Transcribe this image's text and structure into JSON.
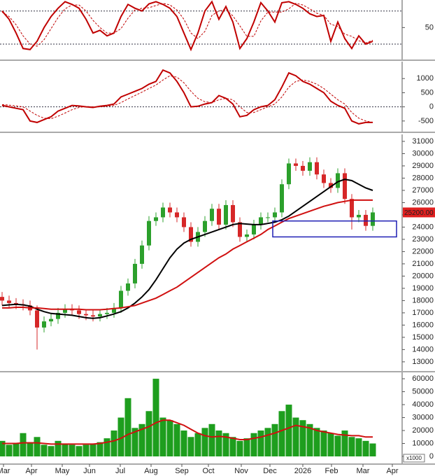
{
  "chart_data": [
    {
      "type": "line",
      "xlim": [
        -0.3,
        57.2
      ],
      "ylim": [
        -8,
        100
      ],
      "yticks": [
        50
      ],
      "levels": [
        20,
        80
      ],
      "series": [
        {
          "color": "#c00000",
          "dash": false,
          "values": [
            80,
            65,
            40,
            12,
            10,
            25,
            50,
            70,
            85,
            97,
            92,
            85,
            65,
            40,
            45,
            35,
            40,
            70,
            92,
            85,
            80,
            93,
            97,
            92,
            85,
            70,
            40,
            10,
            40,
            80,
            97,
            65,
            88,
            60,
            12,
            30,
            60,
            95,
            80,
            60,
            95,
            97,
            92,
            85,
            75,
            70,
            72,
            25,
            60,
            30,
            12,
            35,
            20,
            25
          ]
        },
        {
          "color": "#c00000",
          "dash": true,
          "values": [
            78,
            70,
            55,
            35,
            20,
            16,
            28,
            48,
            68,
            84,
            91,
            91,
            80,
            63,
            50,
            40,
            40,
            48,
            67,
            82,
            85,
            86,
            90,
            94,
            91,
            82,
            65,
            40,
            30,
            43,
            72,
            80,
            83,
            71,
            53,
            34,
            34,
            62,
            78,
            78,
            78,
            84,
            94,
            91,
            84,
            76,
            72,
            56,
            52,
            38,
            34,
            26,
            22,
            27
          ]
        }
      ]
    },
    {
      "type": "line",
      "xlim": [
        -0.3,
        57.2
      ],
      "ylim": [
        -875,
        1600
      ],
      "yticks": [
        -500,
        0,
        500,
        1000
      ],
      "levels": [
        0
      ],
      "series": [
        {
          "color": "#c00000",
          "dash": false,
          "values": [
            50,
            0,
            -50,
            -100,
            -500,
            -550,
            -450,
            -350,
            -150,
            -50,
            50,
            30,
            0,
            -20,
            20,
            50,
            100,
            350,
            450,
            550,
            650,
            800,
            900,
            1300,
            1200,
            900,
            500,
            0,
            20,
            100,
            150,
            400,
            300,
            100,
            -350,
            -300,
            -100,
            0,
            50,
            250,
            700,
            1200,
            1100,
            900,
            800,
            650,
            500,
            200,
            50,
            -50,
            -500,
            -600,
            -550,
            -550
          ]
        },
        {
          "color": "#c00000",
          "dash": true,
          "values": [
            80,
            60,
            30,
            0,
            -150,
            -300,
            -400,
            -420,
            -330,
            -220,
            -100,
            -20,
            10,
            0,
            0,
            20,
            50,
            150,
            280,
            400,
            520,
            650,
            770,
            950,
            1100,
            1050,
            850,
            550,
            300,
            180,
            150,
            250,
            300,
            250,
            0,
            -200,
            -200,
            -100,
            0,
            100,
            350,
            700,
            900,
            950,
            900,
            800,
            650,
            450,
            250,
            100,
            -200,
            -400,
            -500,
            -550
          ]
        }
      ]
    },
    {
      "type": "candlestick",
      "xlim": [
        -0.3,
        57.2
      ],
      "ylim": [
        12250,
        31570
      ],
      "yticks": [
        13000,
        14000,
        15000,
        16000,
        17000,
        18000,
        19000,
        20000,
        21000,
        22000,
        23000,
        24000,
        25000,
        26000,
        27000,
        28000,
        29000,
        30000,
        31000
      ],
      "up_color": "#2ca02c",
      "down_color": "#d62728",
      "open": [
        18300,
        18000,
        17800,
        17700,
        17600,
        17200,
        15800,
        16300,
        16500,
        17000,
        17300,
        17200,
        16900,
        16800,
        16700,
        16900,
        17000,
        17400,
        18800,
        19400,
        21000,
        22500,
        24500,
        24800,
        25600,
        25200,
        24800,
        24000,
        22800,
        23600,
        24500,
        25500,
        24200,
        25800,
        24400,
        23200,
        23400,
        24200,
        24800,
        24800,
        25200,
        27500,
        29200,
        29000,
        28600,
        29300,
        28300,
        27600,
        27200,
        28400,
        26300,
        24800,
        25000,
        24100
      ],
      "high": [
        18700,
        18400,
        18200,
        18100,
        18000,
        17600,
        16700,
        16900,
        17400,
        17700,
        17700,
        17600,
        17300,
        17200,
        17300,
        17400,
        17800,
        19200,
        19800,
        21400,
        22900,
        24900,
        25200,
        26000,
        26000,
        25600,
        25200,
        24400,
        24000,
        24900,
        25900,
        25900,
        26200,
        26200,
        24800,
        23800,
        24600,
        25200,
        25200,
        25600,
        27900,
        29600,
        29600,
        29400,
        29700,
        29700,
        28700,
        28000,
        28800,
        28800,
        26700,
        25400,
        25400,
        25600
      ],
      "low": [
        17600,
        17400,
        17300,
        17200,
        16800,
        14000,
        15400,
        15900,
        16100,
        16600,
        16800,
        16500,
        16400,
        16300,
        16300,
        16500,
        16600,
        17000,
        18400,
        19000,
        20600,
        22100,
        24100,
        24400,
        24800,
        24400,
        23600,
        22400,
        22400,
        23200,
        24100,
        23800,
        23800,
        24000,
        22800,
        22800,
        23000,
        23800,
        24400,
        24400,
        24800,
        27100,
        28600,
        28200,
        28200,
        27900,
        27200,
        26800,
        26800,
        25900,
        23800,
        24400,
        23700,
        23700
      ],
      "close": [
        18000,
        17800,
        17700,
        17600,
        17200,
        15800,
        16300,
        16500,
        17000,
        17300,
        17200,
        16900,
        16800,
        16700,
        16900,
        17000,
        17400,
        18800,
        19400,
        21000,
        22500,
        24500,
        24800,
        25600,
        25200,
        24800,
        24000,
        22800,
        23600,
        24500,
        25500,
        24200,
        25800,
        24400,
        23200,
        23400,
        24200,
        24800,
        24800,
        25200,
        27500,
        29200,
        29000,
        28600,
        29300,
        28300,
        27600,
        27200,
        28400,
        26300,
        24800,
        25000,
        24100,
        25200
      ],
      "series": [
        {
          "color": "#000000",
          "dash": false,
          "values": [
            17600,
            17650,
            17700,
            17650,
            17550,
            17300,
            17100,
            16950,
            16900,
            16850,
            16800,
            16700,
            16600,
            16550,
            16600,
            16750,
            16900,
            17100,
            17400,
            17800,
            18300,
            18900,
            19700,
            20600,
            21500,
            22200,
            22700,
            23000,
            23200,
            23400,
            23600,
            23800,
            24000,
            24200,
            24300,
            24250,
            24200,
            24200,
            24300,
            24400,
            24600,
            24900,
            25300,
            25700,
            26100,
            26500,
            26900,
            27300,
            27700,
            27900,
            27800,
            27500,
            27200,
            27000
          ]
        },
        {
          "color": "#d01010",
          "dash": false,
          "values": [
            17400,
            17400,
            17450,
            17450,
            17400,
            17400,
            17350,
            17300,
            17300,
            17300,
            17300,
            17300,
            17250,
            17250,
            17250,
            17300,
            17350,
            17400,
            17500,
            17600,
            17800,
            18000,
            18200,
            18500,
            18800,
            19100,
            19500,
            19900,
            20300,
            20700,
            21100,
            21500,
            21800,
            22200,
            22500,
            22800,
            23100,
            23400,
            23800,
            24100,
            24400,
            24700,
            24900,
            25100,
            25300,
            25500,
            25700,
            25850,
            26000,
            26100,
            26200,
            26200,
            26200,
            26200
          ]
        }
      ],
      "highlight_box": {
        "x": [
          38.7,
          56.4
        ],
        "y": [
          23200,
          24500
        ],
        "color": "#1f1fb4"
      },
      "last_price": {
        "value": 25200,
        "label": "25200.00",
        "color": "#e02020"
      }
    },
    {
      "type": "bar",
      "xlim": [
        -0.3,
        57.2
      ],
      "ylim": [
        -5400,
        64900
      ],
      "yticks": [
        0,
        10000,
        20000,
        30000,
        40000,
        50000,
        60000
      ],
      "unit_label": "x1000",
      "color": "#1e9e1e",
      "values": [
        12000,
        9000,
        10000,
        18000,
        11000,
        15000,
        9000,
        8000,
        12000,
        10000,
        9000,
        8000,
        9000,
        10000,
        11000,
        14000,
        20000,
        30000,
        45000,
        22000,
        25000,
        35000,
        60000,
        30000,
        28000,
        25000,
        20000,
        15000,
        18000,
        22000,
        25000,
        20000,
        18000,
        15000,
        12000,
        14000,
        18000,
        20000,
        22000,
        25000,
        35000,
        40000,
        30000,
        28000,
        25000,
        22000,
        20000,
        18000,
        16000,
        20000,
        15000,
        14000,
        12000,
        10000
      ],
      "series": [
        {
          "color": "#d01010",
          "dash": false,
          "values": [
            10000,
            10000,
            10000,
            10500,
            10500,
            10500,
            10000,
            9500,
            9500,
            9500,
            9500,
            9500,
            9500,
            9500,
            10000,
            11000,
            12000,
            14000,
            17000,
            19000,
            21000,
            23000,
            26000,
            28000,
            28000,
            26000,
            24000,
            21000,
            18000,
            16000,
            15000,
            15500,
            15000,
            14000,
            13000,
            13000,
            14000,
            15000,
            16500,
            18000,
            20000,
            22000,
            24000,
            23000,
            22000,
            20000,
            19000,
            18000,
            17000,
            16500,
            16000,
            16000,
            15000,
            15000
          ]
        }
      ],
      "xticks": [
        {
          "value": 0.2,
          "label": "Mar"
        },
        {
          "value": 4.2,
          "label": "Apr"
        },
        {
          "value": 8.6,
          "label": "May"
        },
        {
          "value": 12.5,
          "label": "Jun"
        },
        {
          "value": 16.9,
          "label": "Jul"
        },
        {
          "value": 21.3,
          "label": "Aug"
        },
        {
          "value": 25.7,
          "label": "Sep"
        },
        {
          "value": 29.5,
          "label": "Oct"
        },
        {
          "value": 34.2,
          "label": "Nov"
        },
        {
          "value": 38.3,
          "label": "Dec"
        },
        {
          "value": 43.0,
          "label": "2026"
        },
        {
          "value": 47.1,
          "label": "Feb"
        },
        {
          "value": 51.6,
          "label": "Mar"
        },
        {
          "value": 55.8,
          "label": "Apr"
        }
      ]
    }
  ]
}
